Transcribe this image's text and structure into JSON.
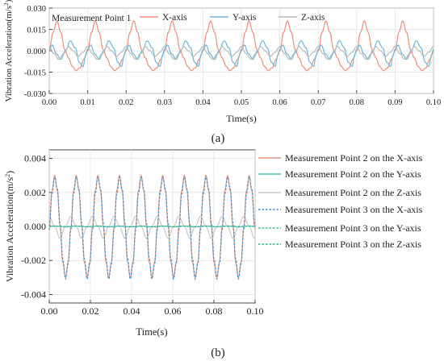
{
  "figure": {
    "label_a": "(a)",
    "label_b": "(b)"
  },
  "chart_data": [
    {
      "type": "line",
      "title": "Measurement Point 1",
      "xlabel": "Time(s)",
      "ylabel_base": "Vibration Acceleration(m/s",
      "ylabel_sup": "2",
      "ylabel_close": ")",
      "xlim": [
        0.0,
        0.1
      ],
      "ylim": [
        -0.03,
        0.03
      ],
      "xticks": [
        0.0,
        0.01,
        0.02,
        0.03,
        0.04,
        0.05,
        0.06,
        0.07,
        0.08,
        0.09,
        0.1
      ],
      "xtick_labels": [
        "0.00",
        "0.01",
        "0.02",
        "0.03",
        "0.04",
        "0.05",
        "0.06",
        "0.07",
        "0.08",
        "0.09",
        "0.10"
      ],
      "yticks": [
        -0.03,
        -0.015,
        0.0,
        0.015,
        0.03
      ],
      "ytick_labels": [
        "-0.030",
        "-0.015",
        "0.000",
        "0.015",
        "0.030"
      ],
      "grid": true,
      "legend_placement": "top",
      "period": 0.01,
      "series": [
        {
          "name": "X-axis",
          "color": "#f08c78",
          "style": "solid",
          "phase": [
            0,
            0.1,
            0.2,
            0.3,
            0.4,
            0.5,
            0.6,
            0.7,
            0.8,
            0.9,
            1.0
          ],
          "values": [
            0.0,
            0.013,
            0.021,
            0.013,
            0.001,
            -0.005,
            -0.011,
            -0.014,
            -0.012,
            -0.006,
            0.0
          ]
        },
        {
          "name": "Y-axis",
          "color": "#6bb7dd",
          "style": "solid",
          "phase": [
            0,
            0.08,
            0.18,
            0.3,
            0.42,
            0.55,
            0.68,
            0.78,
            0.88,
            0.95,
            1.0
          ],
          "values": [
            0.001,
            0.004,
            -0.002,
            -0.006,
            0.0,
            0.007,
            0.002,
            -0.008,
            -0.011,
            -0.003,
            0.001
          ]
        },
        {
          "name": "Z-axis",
          "color": "#b9b9b9",
          "style": "solid",
          "phase": [
            0,
            0.12,
            0.25,
            0.38,
            0.5,
            0.62,
            0.75,
            0.88,
            1.0
          ],
          "values": [
            0.003,
            -0.002,
            -0.006,
            -0.002,
            0.003,
            0.0,
            -0.004,
            -0.001,
            0.003
          ]
        }
      ]
    },
    {
      "type": "line",
      "title": "",
      "xlabel": "Time(s)",
      "ylabel_base": "Vibration Acceleration(m/s",
      "ylabel_sup": "2",
      "ylabel_close": ")",
      "xlim": [
        0.0,
        0.1
      ],
      "ylim": [
        -0.0045,
        0.0045
      ],
      "xticks": [
        0.0,
        0.02,
        0.04,
        0.06,
        0.08,
        0.1
      ],
      "xtick_labels": [
        "0.00",
        "0.02",
        "0.04",
        "0.06",
        "0.08",
        "0.10"
      ],
      "yticks": [
        -0.004,
        -0.002,
        0.0,
        0.002,
        0.004
      ],
      "ytick_labels": [
        "-0.004",
        "-0.002",
        "0.000",
        "0.002",
        "0.004"
      ],
      "grid": true,
      "legend_placement": "right",
      "period": 0.0105,
      "series": [
        {
          "name": "Measurement Point 2 on the X-axis",
          "color": "#e8917e",
          "style": "solid",
          "phase": [
            0,
            0.125,
            0.25,
            0.375,
            0.5,
            0.625,
            0.75,
            0.875,
            1.0
          ],
          "values": [
            0.0,
            0.0021,
            0.003,
            0.0021,
            0.0,
            -0.0021,
            -0.003,
            -0.0021,
            0.0
          ]
        },
        {
          "name": "Measurement Point 2 on the Y-axis",
          "color": "#4fc2b4",
          "style": "solid",
          "phase": [
            0,
            0.25,
            0.5,
            0.75,
            1.0
          ],
          "values": [
            0.0,
            3e-05,
            0.0,
            -3e-05,
            0.0
          ]
        },
        {
          "name": "Measurement Point 2 on the Z-axis",
          "color": "#c8c8c8",
          "style": "solid",
          "phase": [
            0,
            0.25,
            0.5,
            0.75,
            1.0
          ],
          "values": [
            0.0006,
            0.0,
            -0.0007,
            0.0,
            0.0006
          ]
        },
        {
          "name": "Measurement Point 3 on the X-axis",
          "color": "#3a93d3",
          "style": "dotted",
          "phase": [
            0,
            0.125,
            0.25,
            0.375,
            0.5,
            0.625,
            0.75,
            0.875,
            1.0
          ],
          "values": [
            -0.0002,
            0.0019,
            0.0029,
            0.0022,
            0.0002,
            -0.0019,
            -0.0031,
            -0.0022,
            -0.0002
          ]
        },
        {
          "name": "Measurement Point 3 on the Y-axis",
          "color": "#3fb9a0",
          "style": "dotted",
          "phase": [
            0,
            0.25,
            0.5,
            0.75,
            1.0
          ],
          "values": [
            0.0,
            2e-05,
            0.0,
            -2e-05,
            0.0
          ]
        },
        {
          "name": "Measurement Point 3 on the Z-axis",
          "color": "#2fb493",
          "style": "dotted",
          "phase": [
            0,
            0.25,
            0.5,
            0.75,
            1.0
          ],
          "values": [
            0.0,
            2e-05,
            0.0,
            -2e-05,
            0.0
          ]
        }
      ]
    }
  ]
}
